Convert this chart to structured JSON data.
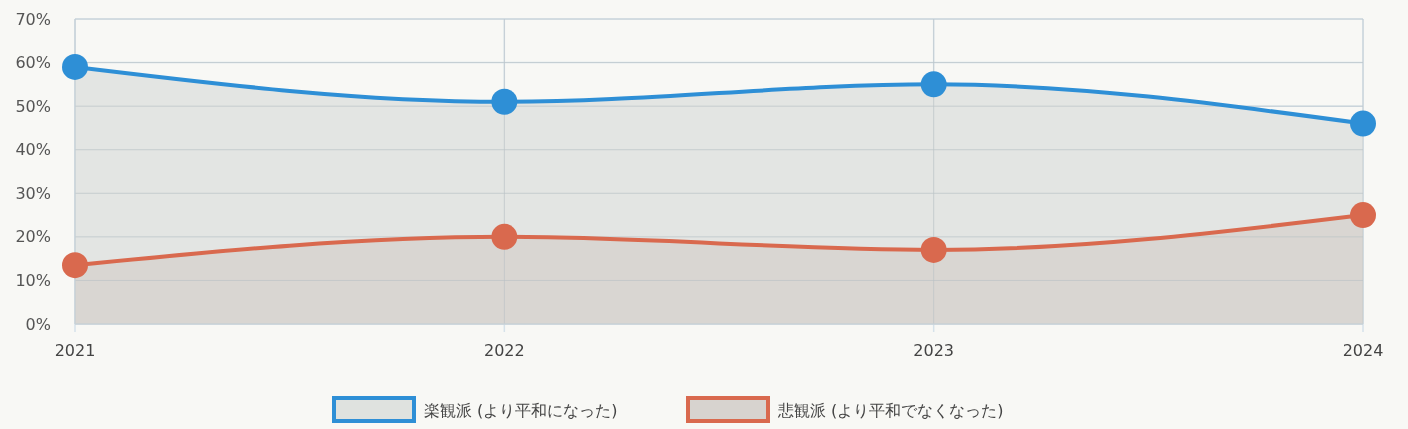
{
  "chart_data": {
    "type": "area",
    "categories": [
      "2021",
      "2022",
      "2023",
      "2024"
    ],
    "series": [
      {
        "name": "楽観派 (より平和になった)",
        "color": "#2e8fd6",
        "values": [
          59,
          51,
          55,
          46
        ]
      },
      {
        "name": "悲観派 (より平和でなくなった)",
        "color": "#d9694e",
        "values": [
          13.5,
          20,
          17,
          25
        ]
      }
    ],
    "ylim": [
      0,
      70
    ],
    "yticks": [
      {
        "value": 0,
        "label": "0%"
      },
      {
        "value": 10,
        "label": "10%"
      },
      {
        "value": 20,
        "label": "20%"
      },
      {
        "value": 30,
        "label": "30%"
      },
      {
        "value": 40,
        "label": "40%"
      },
      {
        "value": 50,
        "label": "50%"
      },
      {
        "value": 60,
        "label": "60%"
      },
      {
        "value": 70,
        "label": "70%"
      }
    ],
    "grid": true,
    "legend": "bottom",
    "marker": "circle",
    "line_style": "solid"
  }
}
